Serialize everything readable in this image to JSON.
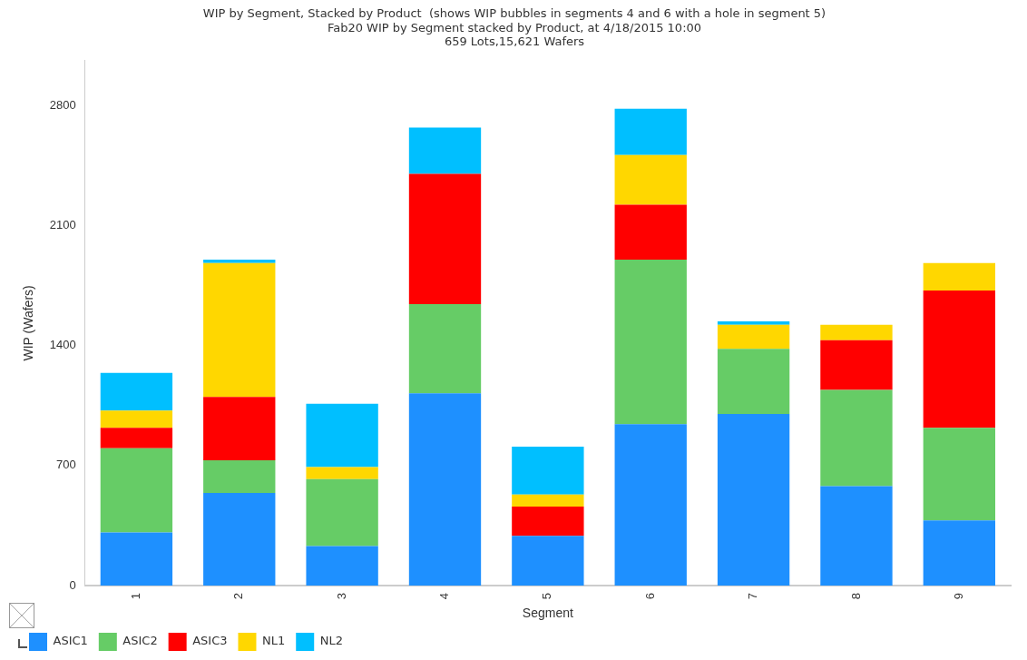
{
  "chart_data": {
    "type": "bar",
    "title": "WIP by Segment, Stacked by Product  (shows WIP bubbles in segments 4 and 6 with a hole in segment 5)",
    "subtitle": "Fab20 WIP by Segment stacked by Product, at 4/18/2015 10:00\n659 Lots,15,621 Wafers",
    "xlabel": "Segment",
    "ylabel": "WIP (Wafers)",
    "stacked": true,
    "categories": [
      "1",
      "2",
      "3",
      "4",
      "5",
      "6",
      "7",
      "8",
      "9"
    ],
    "series": [
      {
        "name": "ASIC1",
        "color": "#1e90ff",
        "values": [
          310,
          540,
          230,
          1120,
          290,
          940,
          1000,
          580,
          380
        ]
      },
      {
        "name": "ASIC2",
        "color": "#66cc66",
        "values": [
          490,
          190,
          390,
          520,
          0,
          960,
          380,
          560,
          540
        ]
      },
      {
        "name": "ASIC3",
        "color": "#ff0000",
        "values": [
          120,
          370,
          0,
          760,
          170,
          320,
          0,
          290,
          800
        ]
      },
      {
        "name": "NL1",
        "color": "#ffd700",
        "values": [
          100,
          780,
          70,
          0,
          70,
          290,
          140,
          90,
          160
        ]
      },
      {
        "name": "NL2",
        "color": "#00bfff",
        "values": [
          220,
          20,
          370,
          270,
          280,
          270,
          20,
          0,
          0
        ]
      }
    ],
    "ylim": [
      0,
      3060
    ],
    "yticks": [
      0,
      700,
      1400,
      2100,
      2800
    ],
    "grid": false,
    "legend": "bottom left"
  }
}
